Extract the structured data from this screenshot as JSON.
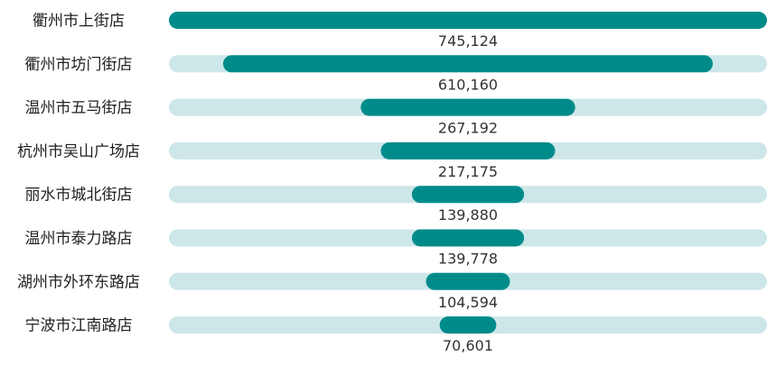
{
  "chart_data": {
    "type": "bar",
    "orientation": "horizontal",
    "style": "centered-funnel",
    "categories": [
      "衢州市上街店",
      "衢州市坊门街店",
      "温州市五马街店",
      "杭州市吴山广场店",
      "丽水市城北街店",
      "温州市泰力路店",
      "湖州市外环东路店",
      "宁波市江南路店"
    ],
    "values": [
      745124,
      610160,
      267192,
      217175,
      139880,
      139778,
      104594,
      70601
    ],
    "value_labels": [
      "745,124",
      "610,160",
      "267,192",
      "217,175",
      "139,880",
      "139,778",
      "104,594",
      "70,601"
    ],
    "title": "",
    "xlabel": "",
    "ylabel": "",
    "xlim": [
      0,
      745124
    ],
    "grid": false,
    "legend": "none",
    "colors": {
      "bar": "#008b8b",
      "track": "#cde7e9",
      "label": "#222222",
      "value": "#333333"
    }
  }
}
